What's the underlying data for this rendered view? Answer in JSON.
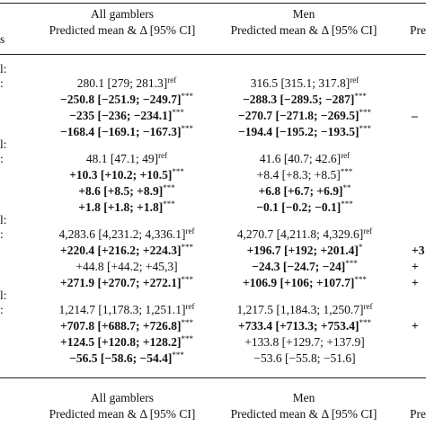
{
  "top_header": {
    "left_stub": "s",
    "columns": [
      {
        "title": "All gamblers",
        "subtitle": "Predicted mean & Δ [95% CI]"
      },
      {
        "title": "Men",
        "subtitle": "Predicted mean & Δ [95% CI]"
      },
      {
        "title": "",
        "subtitle": "Pre"
      }
    ]
  },
  "groups": [
    {
      "stub": "l:",
      "rows": [
        {
          "label": ":",
          "cells": [
            {
              "text": "280.1 [279; 281.3]",
              "sup": "ref",
              "bold": false
            },
            {
              "text": "316.5 [315.1; 317.8]",
              "sup": "ref",
              "bold": false
            },
            {
              "text": "",
              "sup": "",
              "bold": false
            }
          ]
        },
        {
          "label": "",
          "cells": [
            {
              "text": "−250.8 [−251.9; −249.7]",
              "sup": "***",
              "bold": true
            },
            {
              "text": "−288.3 [−289.5; −287]",
              "sup": "***",
              "bold": true
            },
            {
              "text": "",
              "sup": "",
              "bold": false
            }
          ]
        },
        {
          "label": "",
          "cells": [
            {
              "text": "−235 [−236; −234.1]",
              "sup": "***",
              "bold": true
            },
            {
              "text": "−270.7 [−271.8; −269.5]",
              "sup": "***",
              "bold": true
            },
            {
              "text": "–",
              "sup": "",
              "bold": true
            }
          ]
        },
        {
          "label": "",
          "cells": [
            {
              "text": "−168.4 [−169.1; −167.3]",
              "sup": "***",
              "bold": true
            },
            {
              "text": "−194.4 [−195.2; −193.5]",
              "sup": "***",
              "bold": true
            },
            {
              "text": "",
              "sup": "",
              "bold": false
            }
          ]
        }
      ]
    },
    {
      "stub": "l:",
      "rows": [
        {
          "label": ":",
          "cells": [
            {
              "text": "48.1 [47.1; 49]",
              "sup": "ref",
              "bold": false
            },
            {
              "text": "41.6 [40.7; 42.6]",
              "sup": "ref",
              "bold": false
            },
            {
              "text": "",
              "sup": "",
              "bold": false
            }
          ]
        },
        {
          "label": "",
          "cells": [
            {
              "text": "+10.3 [+10.2; +10.5]",
              "sup": "***",
              "bold": true
            },
            {
              "text": "+8.4 [+8.3; +8.5]",
              "sup": "***",
              "bold": false
            },
            {
              "text": "",
              "sup": "",
              "bold": false
            }
          ]
        },
        {
          "label": "",
          "cells": [
            {
              "text": "+8.6 [+8.5; +8.9]",
              "sup": "***",
              "bold": true
            },
            {
              "text": "+6.8 [+6.7; +6.9]",
              "sup": "**",
              "bold": true
            },
            {
              "text": "",
              "sup": "",
              "bold": false
            }
          ]
        },
        {
          "label": "",
          "cells": [
            {
              "text": "+1.8 [+1.8; +1.8]",
              "sup": "***",
              "bold": true
            },
            {
              "text": "−0.1 [−0.2; −0.1]",
              "sup": "***",
              "bold": true
            },
            {
              "text": "",
              "sup": "",
              "bold": false
            }
          ]
        }
      ]
    },
    {
      "stub": "l:",
      "rows": [
        {
          "label": ":",
          "cells": [
            {
              "text": "4,283.6 [4,231.2; 4,336.1]",
              "sup": "ref",
              "bold": false
            },
            {
              "text": "4,270.7 [4,211.8; 4,329.6]",
              "sup": "ref",
              "bold": false
            },
            {
              "text": "",
              "sup": "",
              "bold": false
            }
          ]
        },
        {
          "label": "",
          "cells": [
            {
              "text": "+220.4 [+216.2; +224.3]",
              "sup": "***",
              "bold": true
            },
            {
              "text": "+196.7 [+192; +201.4]",
              "sup": "*",
              "bold": true
            },
            {
              "text": "+3",
              "sup": "",
              "bold": true
            }
          ]
        },
        {
          "label": "",
          "cells": [
            {
              "text": "+44.8 [+44.2; +45,3]",
              "sup": "",
              "bold": false
            },
            {
              "text": "−24.3 [−24.7; −24]",
              "sup": "***",
              "bold": true
            },
            {
              "text": "+",
              "sup": "",
              "bold": true
            }
          ]
        },
        {
          "label": "",
          "cells": [
            {
              "text": "+271.9 [+270.7; +272.1]",
              "sup": "***",
              "bold": true
            },
            {
              "text": "+106.9 [+106; +107.7]",
              "sup": "***",
              "bold": true
            },
            {
              "text": "+",
              "sup": "",
              "bold": true
            }
          ]
        }
      ]
    },
    {
      "stub": "l:",
      "rows": [
        {
          "label": ":",
          "cells": [
            {
              "text": "1,214.7 [1,178.3; 1,251.1]",
              "sup": "ref",
              "bold": false
            },
            {
              "text": "1,217.5 [1,184.3; 1,250.7]",
              "sup": "ref",
              "bold": false
            },
            {
              "text": "",
              "sup": "",
              "bold": false
            }
          ]
        },
        {
          "label": "",
          "cells": [
            {
              "text": "+707.8 [+688.7; +726.8]",
              "sup": "***",
              "bold": true
            },
            {
              "text": "+733.4 [+713.3; +753.4]",
              "sup": "***",
              "bold": true
            },
            {
              "text": "+",
              "sup": "",
              "bold": true
            }
          ]
        },
        {
          "label": "",
          "cells": [
            {
              "text": "+124.5 [+120.8; +128.2]",
              "sup": "***",
              "bold": true
            },
            {
              "text": "+133.8 [+129.7; +137.9]",
              "sup": "",
              "bold": false
            },
            {
              "text": "",
              "sup": "",
              "bold": false
            }
          ]
        },
        {
          "label": "",
          "cells": [
            {
              "text": "−56.5 [−58.6; −54.4]",
              "sup": "***",
              "bold": true
            },
            {
              "text": "−53.6 [−55.8; −51.6]",
              "sup": "",
              "bold": false
            },
            {
              "text": "",
              "sup": "",
              "bold": false
            }
          ]
        }
      ]
    }
  ],
  "bottom_header": {
    "columns": [
      {
        "title": "All gamblers",
        "subtitle": "Predicted mean & Δ [95% CI]"
      },
      {
        "title": "Men",
        "subtitle": "Predicted mean & Δ [95% CI]"
      },
      {
        "title": "",
        "subtitle": "Pre"
      }
    ]
  }
}
